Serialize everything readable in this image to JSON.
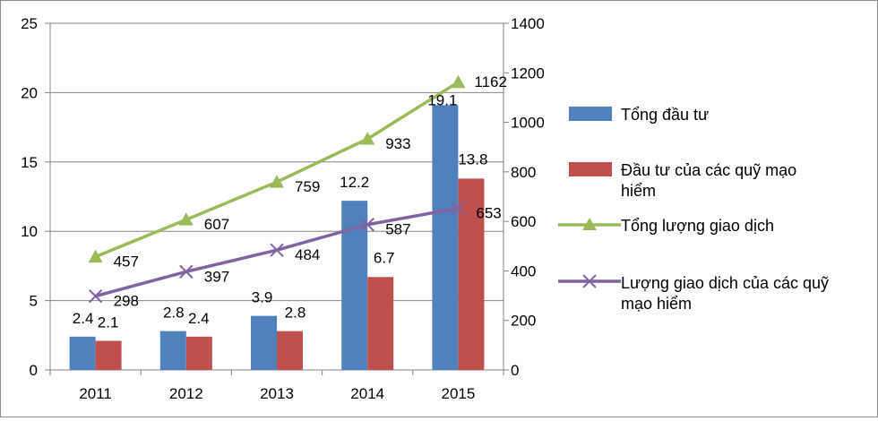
{
  "chart_data": {
    "type": "bar+line",
    "categories": [
      "2011",
      "2012",
      "2013",
      "2014",
      "2015"
    ],
    "bar_series": [
      {
        "name": "Tổng đầu tư",
        "color": "#4f81bd",
        "values": [
          2.4,
          2.8,
          3.9,
          12.2,
          19.1
        ],
        "labels": [
          "2.4",
          "2.8",
          "3.9",
          "12.2",
          "19.1"
        ]
      },
      {
        "name": "Đầu tư của các quỹ mạo hiểm",
        "color": "#c0504d",
        "values": [
          2.1,
          2.4,
          2.8,
          6.7,
          13.8
        ],
        "labels": [
          "2.1",
          "2.4",
          "2.8",
          "6.7",
          "13.8"
        ]
      }
    ],
    "line_series": [
      {
        "name": "Tổng lượng giao dịch",
        "color": "#9bbb59",
        "marker": "triangle",
        "values": [
          457,
          607,
          759,
          933,
          1162
        ],
        "labels": [
          "457",
          "607",
          "759",
          "933",
          "1162"
        ]
      },
      {
        "name": "Lượng giao dịch của các quỹ mạo hiểm",
        "color": "#8064a2",
        "marker": "x",
        "values": [
          298,
          397,
          484,
          587,
          653
        ],
        "labels": [
          "298",
          "397",
          "484",
          "587",
          "653"
        ]
      }
    ],
    "y_left": {
      "min": 0,
      "max": 25,
      "ticks": [
        "0",
        "5",
        "10",
        "15",
        "20",
        "25"
      ]
    },
    "y_right": {
      "min": 0,
      "max": 1400,
      "ticks": [
        "0",
        "200",
        "400",
        "600",
        "800",
        "1000",
        "1200",
        "1400"
      ]
    },
    "legend": {
      "position": "right",
      "items": [
        {
          "text_lines": [
            "Tổng đầu tư"
          ],
          "color": "#4f81bd",
          "kind": "bar"
        },
        {
          "text_lines": [
            "Đầu tư của các quỹ mạo",
            "hiểm"
          ],
          "color": "#c0504d",
          "kind": "bar"
        },
        {
          "text_lines": [
            "Tổng lượng giao dịch"
          ],
          "color": "#9bbb59",
          "kind": "line-triangle"
        },
        {
          "text_lines": [
            "Lượng giao dịch của các quỹ",
            "mạo hiểm"
          ],
          "color": "#8064a2",
          "kind": "line-x"
        }
      ]
    }
  }
}
